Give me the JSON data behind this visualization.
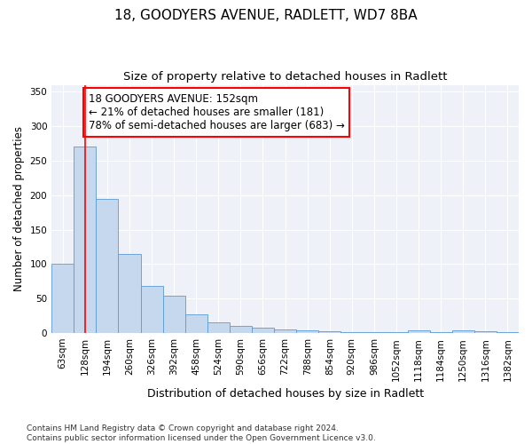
{
  "title1": "18, GOODYERS AVENUE, RADLETT, WD7 8BA",
  "title2": "Size of property relative to detached houses in Radlett",
  "xlabel": "Distribution of detached houses by size in Radlett",
  "ylabel": "Number of detached properties",
  "categories": [
    "63sqm",
    "128sqm",
    "194sqm",
    "260sqm",
    "326sqm",
    "392sqm",
    "458sqm",
    "524sqm",
    "590sqm",
    "656sqm",
    "722sqm",
    "788sqm",
    "854sqm",
    "920sqm",
    "986sqm",
    "1052sqm",
    "1118sqm",
    "1184sqm",
    "1250sqm",
    "1316sqm",
    "1382sqm"
  ],
  "values": [
    100,
    270,
    195,
    115,
    68,
    54,
    27,
    16,
    10,
    8,
    5,
    4,
    3,
    2,
    2,
    1,
    4,
    1,
    4,
    3,
    1
  ],
  "bar_color": "#c5d8ed",
  "bar_edge_color": "#5b9bd5",
  "red_line_x": 1.0,
  "annotation_text": "18 GOODYERS AVENUE: 152sqm\n← 21% of detached houses are smaller (181)\n78% of semi-detached houses are larger (683) →",
  "annotation_box_color": "white",
  "annotation_box_edge_color": "red",
  "ylim": [
    0,
    360
  ],
  "yticks": [
    0,
    50,
    100,
    150,
    200,
    250,
    300,
    350
  ],
  "footnote": "Contains HM Land Registry data © Crown copyright and database right 2024.\nContains public sector information licensed under the Open Government Licence v3.0.",
  "bg_color": "#eef2f8",
  "title1_fontsize": 11,
  "title2_fontsize": 9.5,
  "xlabel_fontsize": 9,
  "ylabel_fontsize": 8.5,
  "tick_fontsize": 7.5,
  "annotation_fontsize": 8.5,
  "footnote_fontsize": 6.5
}
